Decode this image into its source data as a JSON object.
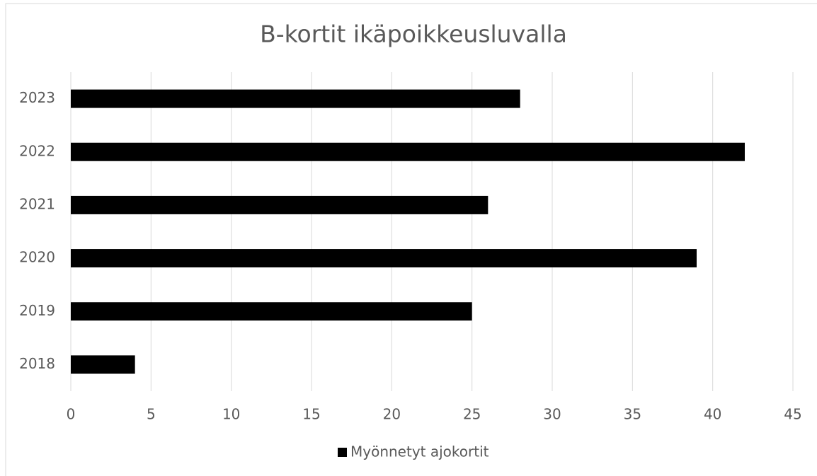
{
  "chart_data": {
    "type": "bar",
    "orientation": "horizontal",
    "title": "B-kortit ikäpoikkeusluvalla",
    "categories": [
      "2018",
      "2019",
      "2020",
      "2021",
      "2022",
      "2023"
    ],
    "series": [
      {
        "name": "Myönnetyt ajokortit",
        "color": "#000000",
        "values": [
          4,
          25,
          39,
          26,
          42,
          28
        ]
      }
    ],
    "xlim": [
      0,
      45
    ],
    "xticks": [
      0,
      5,
      10,
      15,
      20,
      25,
      30,
      35,
      40,
      45
    ],
    "grid": true,
    "legend": "bottom"
  }
}
